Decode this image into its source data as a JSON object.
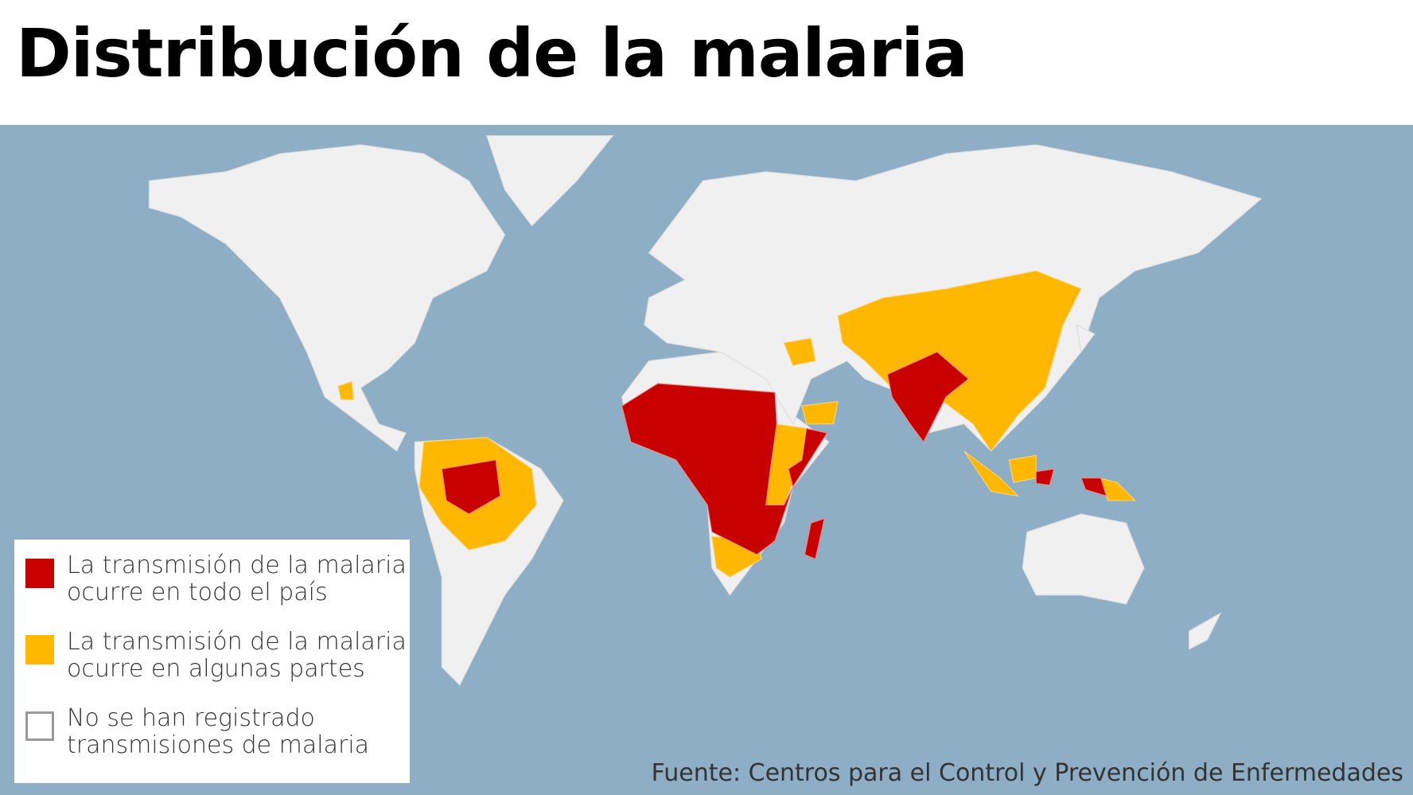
{
  "title": "Distribución de la malaria",
  "colors": {
    "ocean": "#8eaec6",
    "land": "#f0f0f0",
    "full": "#c80000",
    "partial": "#ffb700",
    "none_border": "#999999"
  },
  "legend": [
    {
      "label_1": "La transmisión de la malaria",
      "label_2": "ocurre en todo el país",
      "color": "#c80000"
    },
    {
      "label_1": "La transmisión de la malaria",
      "label_2": "ocurre en algunas partes",
      "color": "#ffb700"
    },
    {
      "label_1": "No se han registrado",
      "label_2": "transmisiones de malaria",
      "color": "#ffffff"
    }
  ],
  "source": "Fuente: Centros para el Control y Prevención de Enfermedades"
}
